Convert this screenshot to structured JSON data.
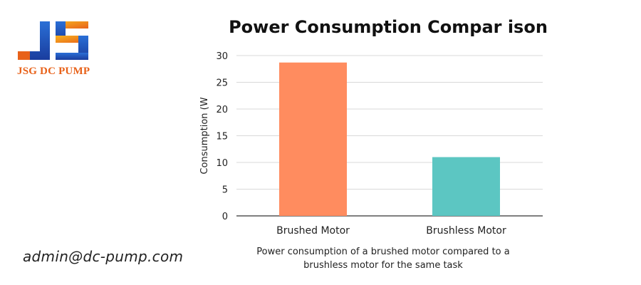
{
  "brand": {
    "name": "JSG DC PUMP",
    "logo_colors": {
      "blue": "#1f4fb8",
      "orange": "#f39a1c",
      "red_orange": "#e8621a"
    }
  },
  "contact": {
    "email": "admin@dc-pump.com"
  },
  "caption": "Power consumption of a brushed motor compared to a brushless motor for the same task",
  "chart_data": {
    "type": "bar",
    "title": "Power Consumption Compar ison",
    "xlabel": "",
    "ylabel": "Consumption (W",
    "categories": [
      "Brushed Motor",
      "Brushless Motor"
    ],
    "values": [
      28.7,
      11
    ],
    "colors": [
      "#ff8c5f",
      "#5cc6c2"
    ],
    "ylim": [
      0,
      30
    ],
    "yticks": [
      0,
      5,
      10,
      15,
      20,
      25,
      30
    ],
    "grid": true,
    "legend": "none"
  }
}
